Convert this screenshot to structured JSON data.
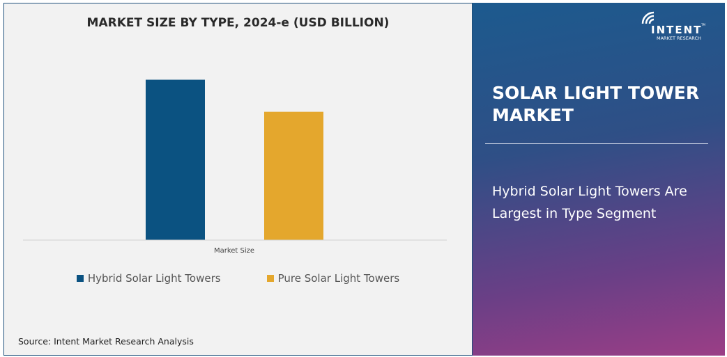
{
  "chart_data": {
    "type": "bar",
    "title": "MARKET SIZE BY TYPE, 2024-e (USD BILLION)",
    "categories": [
      "Market Size"
    ],
    "series": [
      {
        "name": "Hybrid Solar Light Towers",
        "values": [
          1.0
        ],
        "color": "#0b5281"
      },
      {
        "name": "Pure Solar Light Towers",
        "values": [
          0.8
        ],
        "color": "#e4a72d"
      }
    ],
    "xlabel": "",
    "ylabel": "",
    "ylim": [
      0,
      1.15
    ],
    "grid": false,
    "legend": "bottom"
  },
  "source": "Source: Intent Market Research Analysis",
  "panel": {
    "title": "SOLAR LIGHT TOWER MARKET",
    "subtitle": "Hybrid Solar Light Towers Are Largest in Type Segment"
  },
  "logo": {
    "name": "INTENT",
    "tagline": "MARKET RESEARCH",
    "tm": "TM"
  }
}
